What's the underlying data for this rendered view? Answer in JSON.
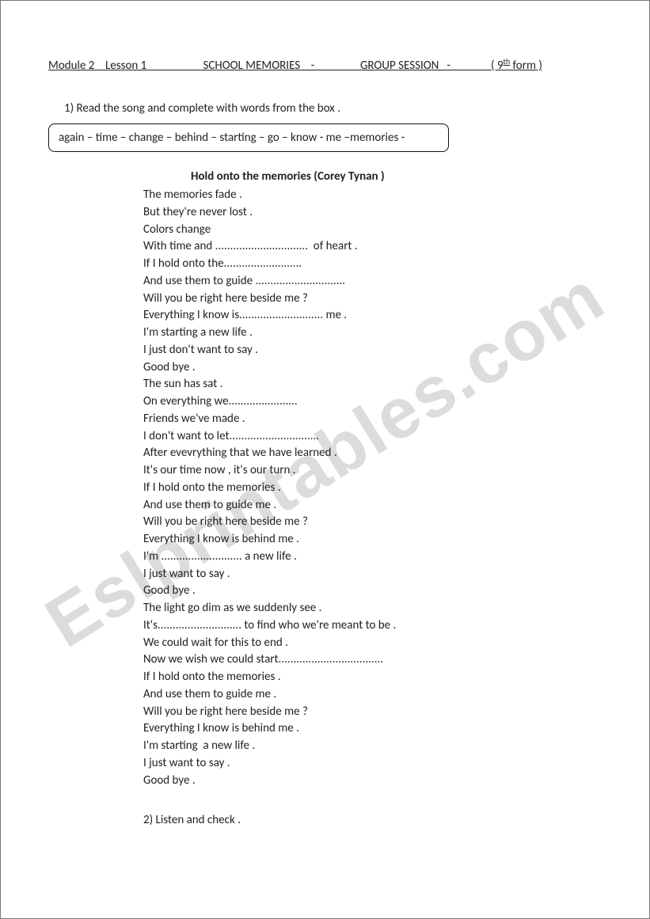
{
  "colors": {
    "text": "#222222",
    "background": "#ffffff",
    "border": "#777777",
    "box_border": "#111111",
    "watermark": "#dcdcdc"
  },
  "typography": {
    "body_fontsize": 15,
    "watermark_fontsize": 90,
    "font_family": "Calibri, Arial, sans-serif"
  },
  "header": {
    "text": "Module 2    Lesson 1                     SCHOOL MEMORIES    -                 GROUP SESSION   -               ( 9",
    "sup": "th",
    "tail": " form )"
  },
  "instruction1": "1) Read the song and complete with words from the box .",
  "wordbox": "again – time – change – behind – starting – go – know - me –memories -",
  "song_title": "Hold onto the memories        (Corey Tynan )",
  "lyrics": [
    "The memories fade .",
    "But they're never lost .",
    "Colors change",
    "With time and ...............................  of heart .",
    "If I hold onto the..........................",
    "And use them to guide ..............................",
    "Will you be right here beside me ?",
    "Everything I know is............................ me .",
    "I'm starting a new life .",
    "I just don't want to say .",
    "Good bye .",
    "The sun has sat .",
    "On everything we.......................",
    "Friends we've made .",
    "I don't want to let..............................",
    "After evevrything that we have learned .",
    "It's our time now , it's our turn .",
    "If I hold onto the memories .",
    "And use them to guide me .",
    "Will you be right here beside me ?",
    "Everything I know is behind me .",
    "I'm ........................... a new life .",
    "I just want to say .",
    "Good bye .",
    "The light go dim as we suddenly see .",
    "It's............................ to find who we're meant to be .",
    "We could wait for this to end .",
    "Now we wish we could start...................................",
    "If I hold onto the memories .",
    "And use them to guide me .",
    "Will you be right here beside me ?",
    "Everything I know is behind me .",
    "I'm starting  a new life .",
    "I just want to say .",
    "Good bye ."
  ],
  "instruction2": "2) Listen and check .",
  "watermark": "Eslprintables.com"
}
